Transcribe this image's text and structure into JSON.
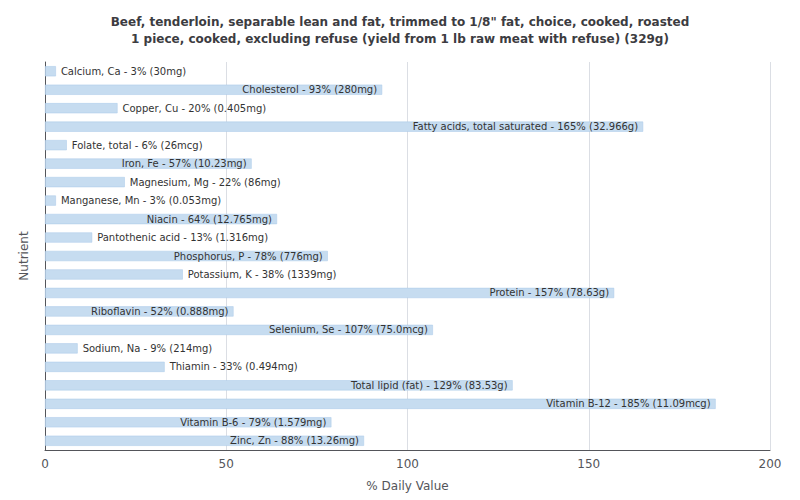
{
  "chart_data": {
    "type": "bar",
    "orientation": "horizontal",
    "title": "Beef, tenderloin, separable lean and fat, trimmed to 1/8\" fat, choice, cooked, roasted\n1 piece, cooked, excluding refuse (yield from 1 lb raw meat with refuse) (329g)",
    "xlabel": "% Daily Value",
    "ylabel": "Nutrient",
    "categories": [
      "Calcium, Ca - 3% (30mg)",
      "Cholesterol - 93% (280mg)",
      "Copper, Cu - 20% (0.405mg)",
      "Fatty acids, total saturated - 165% (32.966g)",
      "Folate, total - 6% (26mcg)",
      "Iron, Fe - 57% (10.23mg)",
      "Magnesium, Mg - 22% (86mg)",
      "Manganese, Mn - 3% (0.053mg)",
      "Niacin - 64% (12.765mg)",
      "Pantothenic acid - 13% (1.316mg)",
      "Phosphorus, P - 78% (776mg)",
      "Potassium, K - 38% (1339mg)",
      "Protein - 157% (78.63g)",
      "Riboflavin - 52% (0.888mg)",
      "Selenium, Se - 107% (75.0mcg)",
      "Sodium, Na - 9% (214mg)",
      "Thiamin - 33% (0.494mg)",
      "Total lipid (fat) - 129% (83.53g)",
      "Vitamin B-12 - 185% (11.09mcg)",
      "Vitamin B-6 - 79% (1.579mg)",
      "Zinc, Zn - 88% (13.26mg)"
    ],
    "values": [
      3,
      93,
      20,
      165,
      6,
      57,
      22,
      3,
      64,
      13,
      78,
      38,
      157,
      52,
      107,
      9,
      33,
      129,
      185,
      79,
      88
    ],
    "color": "#c6dcf0",
    "xlim": [
      0,
      200
    ],
    "xticks": [
      0,
      50,
      100,
      150,
      200
    ],
    "grid": true,
    "tick_labels": "x"
  }
}
